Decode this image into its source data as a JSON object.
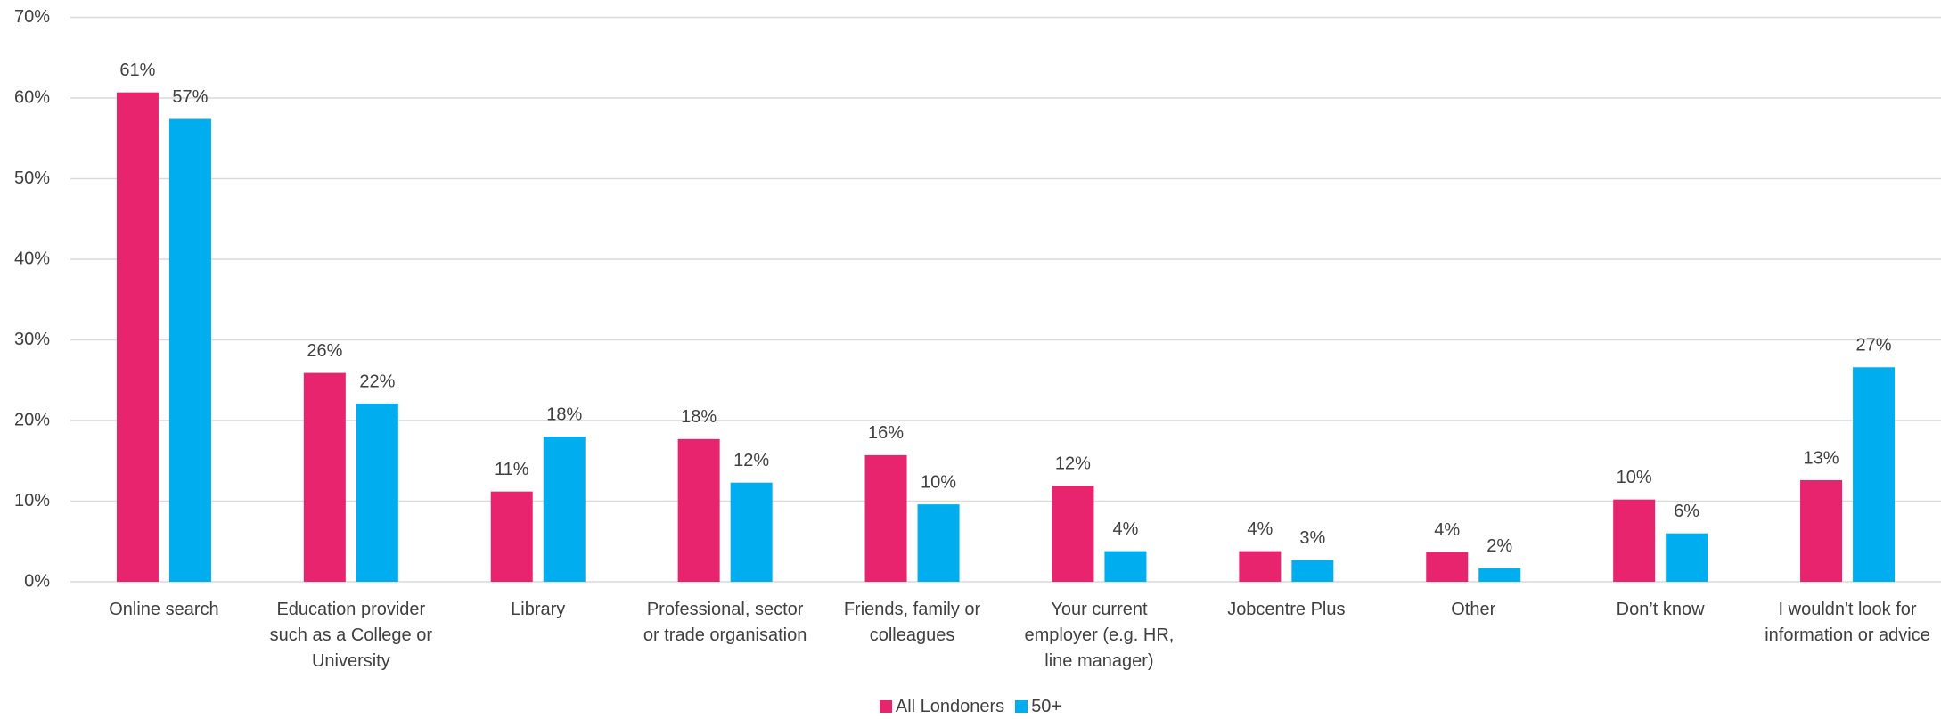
{
  "chart_data": {
    "type": "bar",
    "categories": [
      "Online search",
      "Education provider such as a College or University",
      "Library",
      "Professional, sector or trade organisation",
      "Friends, family or colleagues",
      "Your current employer (e.g. HR, line manager)",
      "Jobcentre Plus",
      "Other",
      "Don’t know",
      "I wouldn't look for information or advice"
    ],
    "series": [
      {
        "name": "All Londoners",
        "color": "#e8246f",
        "values": [
          60.7,
          25.9,
          11.2,
          17.7,
          15.7,
          11.9,
          3.8,
          3.7,
          10.2,
          12.6
        ],
        "value_labels": [
          "61%",
          "26%",
          "11%",
          "18%",
          "16%",
          "12%",
          "4%",
          "4%",
          "10%",
          "13%"
        ]
      },
      {
        "name": "50+",
        "color": "#00aeef",
        "values": [
          57.4,
          22.1,
          18.0,
          12.3,
          9.6,
          3.8,
          2.7,
          1.7,
          6.0,
          26.6
        ],
        "value_labels": [
          "57%",
          "22%",
          "18%",
          "12%",
          "10%",
          "4%",
          "3%",
          "2%",
          "6%",
          "27%"
        ]
      }
    ],
    "ylim": [
      0,
      70
    ],
    "yticks": [
      {
        "value": 0,
        "label": "0%"
      },
      {
        "value": 10,
        "label": "10%"
      },
      {
        "value": 20,
        "label": "20%"
      },
      {
        "value": 30,
        "label": "30%"
      },
      {
        "value": 40,
        "label": "40%"
      },
      {
        "value": 50,
        "label": "50%"
      },
      {
        "value": 60,
        "label": "60%"
      },
      {
        "value": 70,
        "label": "70%"
      }
    ],
    "grid": true,
    "legend": "bottom"
  }
}
